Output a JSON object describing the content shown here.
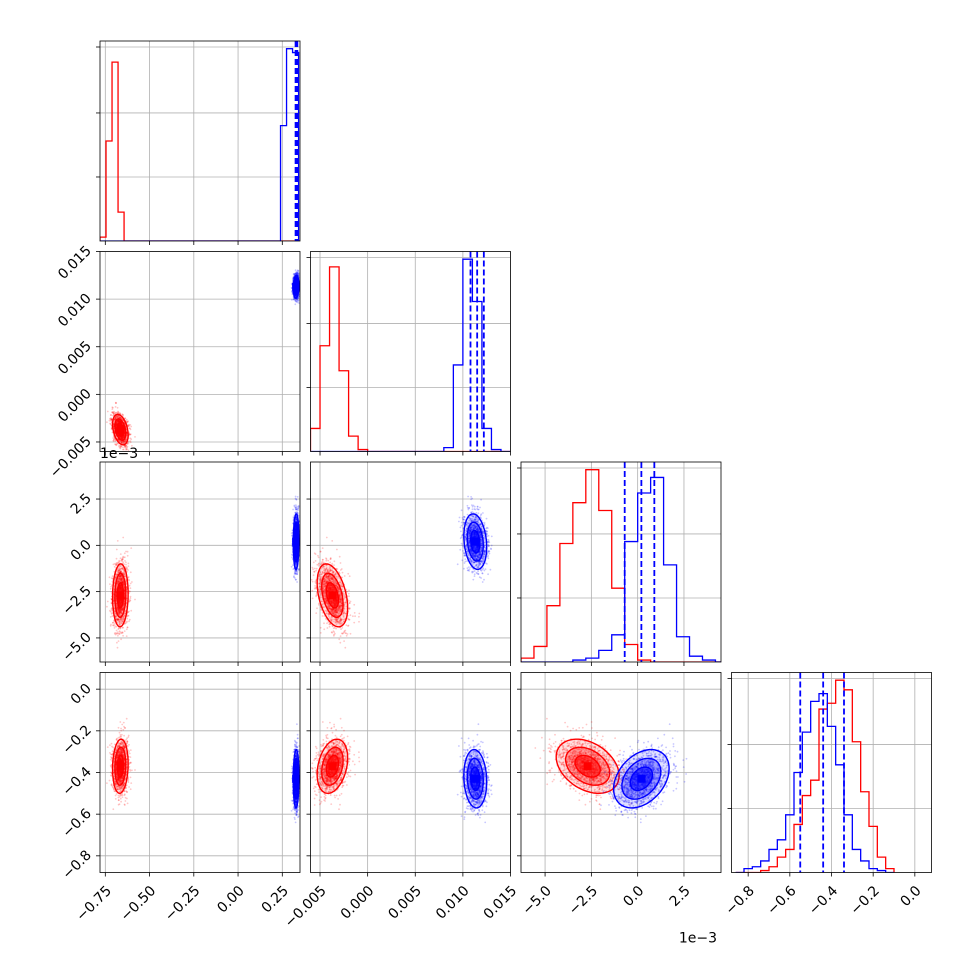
{
  "chart_data": {
    "type": "corner",
    "series": [
      {
        "name": "",
        "color": "#ff0000"
      },
      {
        "name": "",
        "color": "#0000ff"
      }
    ],
    "grid": true,
    "parameters": [
      {
        "range": [
          -0.78,
          0.35
        ],
        "ticks": [
          -0.75,
          -0.5,
          -0.25,
          0.0,
          0.25
        ],
        "tick_labels": [
          "−0.75",
          "−0.50",
          "−0.25",
          "0.00",
          "0.25"
        ],
        "offset_label": ""
      },
      {
        "range": [
          -0.006,
          0.015
        ],
        "ticks": [
          -0.005,
          0.0,
          0.005,
          0.01,
          0.015
        ],
        "tick_labels": [
          "−0.005",
          "0.000",
          "0.005",
          "0.010",
          "0.015"
        ],
        "offset_label": ""
      },
      {
        "range": [
          -0.0063,
          0.0045
        ],
        "ticks": [
          -0.005,
          -0.0025,
          0.0,
          0.0025
        ],
        "tick_labels": [
          "−5.0",
          "−2.5",
          "0.0",
          "2.5"
        ],
        "offset_label": "1e−3"
      },
      {
        "range": [
          -0.88,
          0.08
        ],
        "ticks": [
          -0.8,
          -0.6,
          -0.4,
          -0.2,
          0.0
        ],
        "tick_labels": [
          "−0.8",
          "−0.6",
          "−0.4",
          "−0.2",
          "0.0"
        ],
        "offset_label": ""
      }
    ],
    "histograms": [
      {
        "param": 0,
        "edges": [
          -0.78,
          -0.746,
          -0.712,
          -0.678,
          -0.644,
          -0.61,
          -0.576,
          0.24,
          0.274,
          0.308,
          0.342,
          0.35
        ],
        "red": [
          0.02,
          0.52,
          0.93,
          0.15,
          0.0,
          0.0,
          0.0,
          0.0,
          0.0,
          0.0,
          0.0
        ],
        "blue": [
          0.0,
          0.0,
          0.0,
          0.0,
          0.0,
          0.0,
          0.0,
          0.6,
          1.0,
          0.98,
          0.0
        ],
        "quantiles": [
          0.325,
          0.33,
          0.335
        ]
      },
      {
        "param": 1,
        "edges": [
          -0.006,
          -0.005,
          -0.004,
          -0.003,
          -0.002,
          -0.001,
          0.0,
          0.001,
          0.008,
          0.009,
          0.01,
          0.011,
          0.012,
          0.013,
          0.014,
          0.015
        ],
        "red": [
          0.12,
          0.55,
          0.96,
          0.42,
          0.08,
          0.01,
          0.0,
          0.0,
          0.0,
          0.0,
          0.0,
          0.0,
          0.0,
          0.0,
          0.0
        ],
        "blue": [
          0.0,
          0.0,
          0.0,
          0.0,
          0.0,
          0.0,
          0.0,
          0.0,
          0.02,
          0.45,
          1.0,
          0.78,
          0.12,
          0.01,
          0.0
        ],
        "quantiles": [
          0.0108,
          0.0115,
          0.0122
        ]
      },
      {
        "param": 2,
        "edges": [
          -0.0063,
          -0.0056,
          -0.0049,
          -0.0042,
          -0.0035,
          -0.0028,
          -0.0021,
          -0.0014,
          -0.0007,
          0.0,
          0.0007,
          0.0014,
          0.0021,
          0.0028,
          0.0035,
          0.0042,
          0.0045
        ],
        "red": [
          0.02,
          0.08,
          0.29,
          0.61,
          0.82,
          0.99,
          0.78,
          0.38,
          0.09,
          0.01,
          0.0,
          0.0,
          0.0,
          0.0,
          0.0,
          0.0
        ],
        "blue": [
          0.0,
          0.0,
          0.0,
          0.0,
          0.01,
          0.02,
          0.06,
          0.14,
          0.62,
          0.87,
          0.95,
          0.5,
          0.13,
          0.03,
          0.01,
          0.0
        ],
        "quantiles": [
          -0.0007,
          0.0002,
          0.0009
        ]
      },
      {
        "param": 3,
        "edges": [
          -0.86,
          -0.82,
          -0.78,
          -0.74,
          -0.7,
          -0.66,
          -0.62,
          -0.58,
          -0.54,
          -0.5,
          -0.46,
          -0.42,
          -0.38,
          -0.34,
          -0.3,
          -0.26,
          -0.22,
          -0.18,
          -0.14,
          -0.1
        ],
        "red": [
          0.0,
          0.0,
          0.0,
          0.01,
          0.03,
          0.08,
          0.12,
          0.25,
          0.4,
          0.48,
          0.85,
          0.88,
          1.0,
          0.95,
          0.68,
          0.42,
          0.24,
          0.08,
          0.02
        ],
        "blue": [
          0.0,
          0.02,
          0.03,
          0.06,
          0.12,
          0.17,
          0.3,
          0.52,
          0.73,
          0.89,
          0.93,
          0.76,
          0.56,
          0.3,
          0.12,
          0.06,
          0.02,
          0.01,
          0.0
        ],
        "quantiles": [
          -0.55,
          -0.44,
          -0.34
        ]
      }
    ],
    "clusters": [
      {
        "color": "#ff0000",
        "mean": [
          -0.665,
          -0.0037,
          -0.0027,
          -0.37
        ],
        "sd": [
          0.022,
          0.0008,
          0.00085,
          0.065
        ],
        "corr": [
          [
            1,
            -0.35,
            0.05,
            0.1
          ],
          [
            -0.35,
            1,
            -0.4,
            0.3
          ],
          [
            0.05,
            -0.4,
            1,
            -0.35
          ],
          [
            0.1,
            0.3,
            -0.35,
            1
          ]
        ]
      },
      {
        "color": "#0000ff",
        "mean": [
          0.328,
          0.0113,
          0.0002,
          -0.43
        ],
        "sd": [
          0.008,
          0.0006,
          0.00075,
          0.07
        ],
        "corr": [
          [
            1,
            0.1,
            0.05,
            0.05
          ],
          [
            0.1,
            1,
            -0.2,
            -0.1
          ],
          [
            0.05,
            -0.2,
            1,
            0.35
          ],
          [
            0.05,
            -0.1,
            0.35,
            1
          ]
        ]
      }
    ]
  }
}
